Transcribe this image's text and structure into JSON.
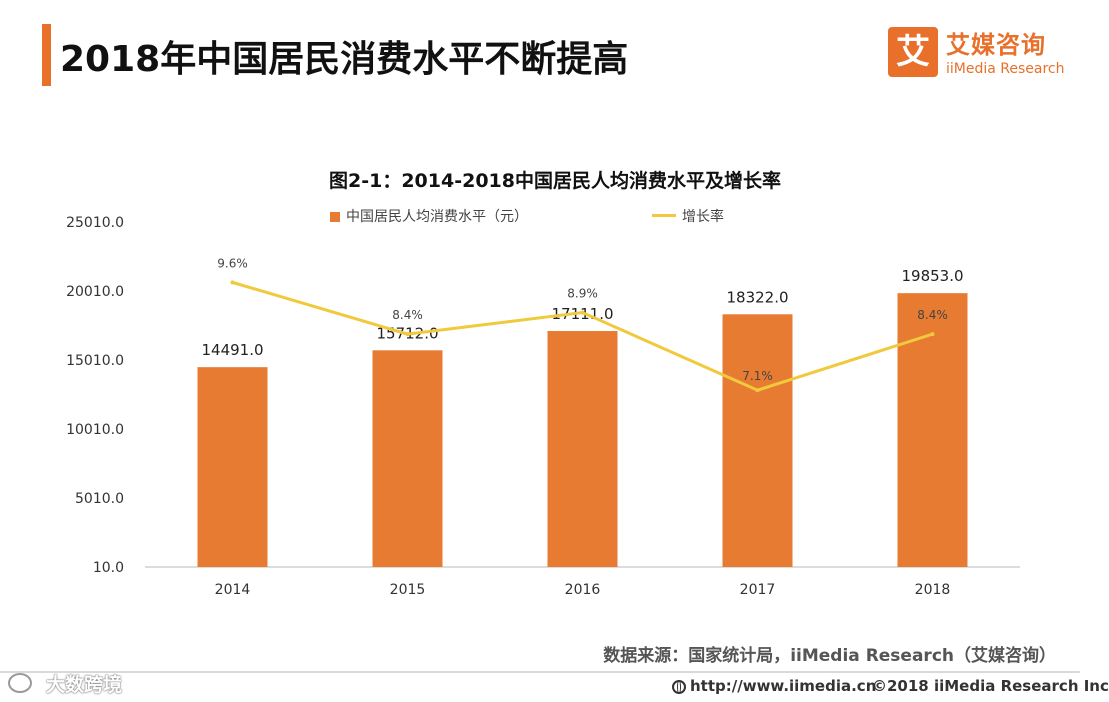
{
  "header": {
    "title": "2018年中国居民消费水平不断提高"
  },
  "logo": {
    "mark": "艾",
    "name_cn": "艾媒咨询",
    "name_en": "iiMedia Research"
  },
  "colors": {
    "accent": "#e8702a",
    "bar": "#e87b32",
    "line": "#f0c93c"
  },
  "chart_data": {
    "type": "bar",
    "title": "图2-1：2014-2018中国居民人均消费水平及增长率",
    "categories": [
      "2014",
      "2015",
      "2016",
      "2017",
      "2018"
    ],
    "series": [
      {
        "name": "中国居民人均消费水平（元）",
        "type": "bar",
        "values": [
          14491.0,
          15712.0,
          17111.0,
          18322.0,
          19853.0
        ],
        "labels": [
          "14491.0",
          "15712.0",
          "17111.0",
          "18322.0",
          "19853.0"
        ]
      },
      {
        "name": "增长率",
        "type": "line",
        "values": [
          9.6,
          8.4,
          8.9,
          7.1,
          8.4
        ],
        "labels": [
          "9.6%",
          "8.4%",
          "8.9%",
          "7.1%",
          "8.4%"
        ]
      }
    ],
    "y_ticks": [
      "25010.0",
      "20010.0",
      "15010.0",
      "10010.0",
      "5010.0",
      "10.0"
    ],
    "ylim": [
      10,
      25010
    ],
    "y2lim": [
      3,
      11
    ],
    "xlabel": "",
    "ylabel": "",
    "grid": false,
    "legend": "top"
  },
  "footer": {
    "source": "数据来源：国家统计局，iiMedia Research（艾媒咨询）",
    "url": "http://www.iimedia.cn",
    "copyright": "©2018  iiMedia Research  Inc",
    "watermark": "大数跨境"
  }
}
